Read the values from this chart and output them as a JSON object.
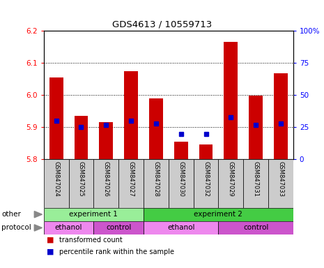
{
  "title": "GDS4613 / 10559713",
  "samples": [
    "GSM847024",
    "GSM847025",
    "GSM847026",
    "GSM847027",
    "GSM847028",
    "GSM847030",
    "GSM847032",
    "GSM847029",
    "GSM847031",
    "GSM847033"
  ],
  "bar_values": [
    6.055,
    5.935,
    5.915,
    6.075,
    5.99,
    5.855,
    5.847,
    6.165,
    5.998,
    6.068
  ],
  "percentile_values": [
    30,
    25,
    27,
    30,
    28,
    20,
    20,
    33,
    27,
    28
  ],
  "bar_bottom": 5.8,
  "ylim": [
    5.8,
    6.2
  ],
  "y2lim": [
    0,
    100
  ],
  "yticks": [
    5.8,
    5.9,
    6.0,
    6.1,
    6.2
  ],
  "y2ticks": [
    0,
    25,
    50,
    75,
    100
  ],
  "bar_color": "#cc0000",
  "percentile_color": "#0000cc",
  "groups_other": [
    {
      "label": "experiment 1",
      "start": 0,
      "end": 4,
      "color": "#99ee99"
    },
    {
      "label": "experiment 2",
      "start": 4,
      "end": 10,
      "color": "#44cc44"
    }
  ],
  "groups_protocol": [
    {
      "label": "ethanol",
      "start": 0,
      "end": 2,
      "color": "#ee88ee"
    },
    {
      "label": "control",
      "start": 2,
      "end": 4,
      "color": "#cc55cc"
    },
    {
      "label": "ethanol",
      "start": 4,
      "end": 7,
      "color": "#ee88ee"
    },
    {
      "label": "control",
      "start": 7,
      "end": 10,
      "color": "#cc55cc"
    }
  ],
  "legend_items": [
    {
      "label": "transformed count",
      "color": "#cc0000"
    },
    {
      "label": "percentile rank within the sample",
      "color": "#0000cc"
    }
  ],
  "bar_width": 0.55
}
